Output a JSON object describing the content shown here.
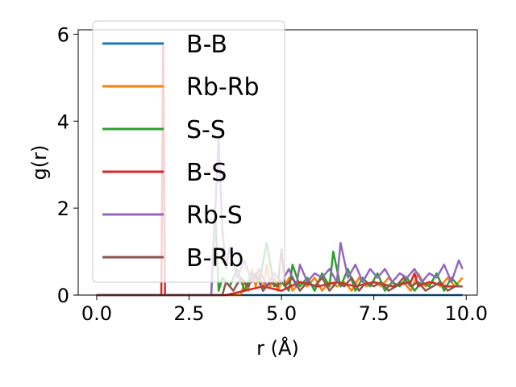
{
  "chart_data": {
    "type": "line",
    "xlabel": "r (Å)",
    "ylabel": "g(r)",
    "xlim": [
      -0.5,
      10.3
    ],
    "ylim": [
      0,
      6.1
    ],
    "xticks": [
      0.0,
      2.5,
      5.0,
      7.5,
      10.0
    ],
    "xtick_labels": [
      "0.0",
      "2.5",
      "5.0",
      "7.5",
      "10.0"
    ],
    "yticks": [
      0,
      2,
      4,
      6
    ],
    "ytick_labels": [
      "0",
      "2",
      "4",
      "6"
    ],
    "grid": false,
    "legend_position": "top-left",
    "series": [
      {
        "name": "B-B",
        "color": "#1f77b4",
        "x": [
          0.0,
          9.9
        ],
        "y": [
          0.0,
          0.0
        ]
      },
      {
        "name": "Rb-Rb",
        "color": "#ff7f0e",
        "x": [
          0.0,
          3.9,
          4.0,
          4.1,
          4.2,
          4.3,
          4.4,
          4.5,
          4.6,
          4.7,
          4.8,
          4.9,
          5.0,
          5.1,
          5.2,
          5.3,
          5.5,
          5.7,
          5.9,
          6.1,
          6.3,
          6.5,
          6.7,
          6.9,
          7.1,
          7.3,
          7.5,
          7.7,
          7.9,
          8.1,
          8.3,
          8.5,
          8.7,
          8.9,
          9.1,
          9.3,
          9.5,
          9.7,
          9.9
        ],
        "y": [
          0.0,
          0.0,
          0.3,
          0.1,
          0.6,
          0.2,
          0.5,
          0.1,
          0.7,
          0.2,
          0.4,
          0.1,
          0.3,
          0.2,
          0.4,
          0.1,
          0.3,
          0.2,
          0.4,
          0.1,
          0.3,
          0.2,
          0.3,
          0.1,
          0.4,
          0.2,
          0.3,
          0.2,
          0.4,
          0.2,
          0.3,
          0.1,
          0.5,
          0.2,
          0.3,
          0.2,
          0.4,
          0.2,
          0.4
        ]
      },
      {
        "name": "S-S",
        "color": "#2ca02c",
        "x": [
          0.0,
          3.1,
          3.2,
          3.3,
          3.4,
          3.6,
          3.8,
          4.0,
          4.2,
          4.4,
          4.6,
          4.8,
          5.0,
          5.2,
          5.3,
          5.5,
          5.7,
          5.9,
          6.1,
          6.3,
          6.4,
          6.6,
          6.8,
          7.0,
          7.2,
          7.4,
          7.6,
          7.8,
          8.0,
          8.2,
          8.4,
          8.6,
          8.8,
          9.0,
          9.2,
          9.4,
          9.6,
          9.8,
          9.9
        ],
        "y": [
          0.0,
          0.0,
          2.0,
          0.1,
          0.4,
          0.2,
          0.6,
          0.1,
          0.5,
          0.3,
          1.2,
          0.2,
          0.3,
          0.1,
          0.7,
          0.2,
          0.4,
          0.1,
          0.5,
          0.2,
          1.0,
          0.2,
          0.6,
          0.1,
          0.4,
          0.2,
          0.5,
          0.1,
          0.3,
          0.2,
          0.4,
          0.1,
          0.3,
          0.2,
          0.5,
          0.1,
          0.4,
          0.2,
          0.2
        ]
      },
      {
        "name": "B-S",
        "color": "#d62728",
        "x": [
          0.0,
          1.75,
          1.8,
          1.85,
          1.9,
          2.0,
          2.5,
          3.0,
          3.5,
          4.0,
          4.5,
          5.0,
          5.5,
          6.0,
          6.5,
          7.0,
          7.5,
          8.0,
          8.5,
          8.6,
          8.7,
          9.0,
          9.5,
          9.9
        ],
        "y": [
          0.0,
          0.0,
          5.8,
          0.0,
          0.0,
          0.0,
          0.0,
          0.0,
          0.0,
          0.1,
          0.2,
          0.1,
          0.3,
          0.2,
          0.3,
          0.2,
          0.3,
          0.2,
          0.3,
          0.5,
          0.2,
          0.3,
          0.2,
          0.2
        ]
      },
      {
        "name": "Rb-S",
        "color": "#9467bd",
        "x": [
          0.0,
          3.1,
          3.2,
          3.3,
          3.4,
          3.5,
          3.6,
          3.8,
          4.0,
          4.2,
          4.4,
          4.6,
          4.8,
          5.0,
          5.2,
          5.4,
          5.5,
          5.7,
          5.9,
          6.1,
          6.3,
          6.5,
          6.6,
          6.8,
          7.0,
          7.2,
          7.4,
          7.6,
          7.8,
          8.0,
          8.2,
          8.4,
          8.6,
          8.8,
          9.0,
          9.2,
          9.4,
          9.6,
          9.8,
          9.9
        ],
        "y": [
          0.0,
          0.0,
          1.8,
          3.6,
          1.5,
          0.6,
          1.1,
          0.4,
          0.8,
          0.3,
          0.6,
          0.2,
          0.5,
          0.3,
          0.6,
          0.2,
          0.7,
          0.3,
          0.5,
          0.4,
          0.6,
          0.3,
          1.2,
          0.4,
          0.7,
          0.3,
          0.6,
          0.4,
          0.6,
          0.3,
          0.5,
          0.4,
          0.6,
          0.3,
          0.5,
          0.4,
          0.7,
          0.3,
          0.8,
          0.6
        ]
      },
      {
        "name": "B-Rb",
        "color": "#8c564b",
        "x": [
          0.0,
          3.4,
          3.5,
          3.7,
          3.9,
          4.1,
          4.3,
          4.5,
          4.7,
          4.9,
          5.0,
          5.1,
          5.3,
          5.5,
          5.7,
          5.9,
          6.1,
          6.3,
          6.5,
          6.7,
          6.9,
          7.1,
          7.3,
          7.5,
          7.7,
          7.9,
          8.1,
          8.3,
          8.5,
          8.7,
          8.9,
          9.1,
          9.3,
          9.5,
          9.7,
          9.9
        ],
        "y": [
          0.0,
          0.0,
          0.3,
          0.1,
          0.4,
          0.2,
          0.5,
          0.1,
          0.3,
          0.2,
          1.05,
          0.2,
          0.4,
          0.1,
          0.3,
          0.2,
          0.4,
          0.1,
          0.3,
          0.2,
          0.4,
          0.1,
          0.3,
          0.2,
          0.3,
          0.1,
          0.2,
          0.4,
          0.2,
          0.3,
          0.1,
          0.2,
          0.3,
          0.1,
          0.2,
          0.2
        ]
      }
    ]
  }
}
